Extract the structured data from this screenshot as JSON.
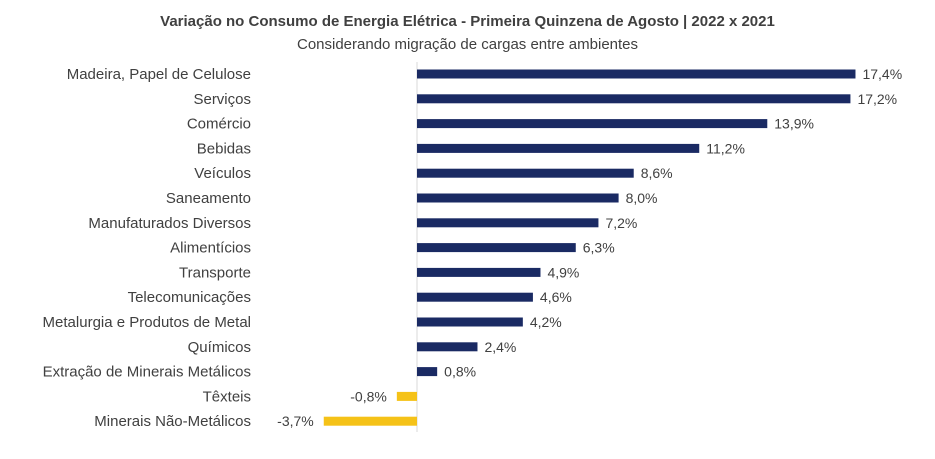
{
  "chart_data": {
    "type": "bar",
    "orientation": "horizontal",
    "title": "Variação no Consumo de Energia Elétrica - Primeira Quinzena de Agosto | 2022 x 2021",
    "subtitle": "Considerando migração de cargas entre ambientes",
    "categories": [
      "Madeira, Papel de Celulose",
      "Serviços",
      "Comércio",
      "Bebidas",
      "Veículos",
      "Saneamento",
      "Manufaturados Diversos",
      "Alimentícios",
      "Transporte",
      "Telecomunicações",
      "Metalurgia e Produtos de Metal",
      "Químicos",
      "Extração de Minerais Metálicos",
      "Têxteis",
      "Minerais Não-Metálicos"
    ],
    "values": [
      17.4,
      17.2,
      13.9,
      11.2,
      8.6,
      8.0,
      7.2,
      6.3,
      4.9,
      4.6,
      4.2,
      2.4,
      0.8,
      -0.8,
      -3.7
    ],
    "value_labels": [
      "17,4%",
      "17,2%",
      "13,9%",
      "11,2%",
      "8,6%",
      "8,0%",
      "7,2%",
      "6,3%",
      "4,9%",
      "4,6%",
      "4,2%",
      "2,4%",
      "0,8%",
      "-0,8%",
      "-3,7%"
    ],
    "colors": {
      "positive": "#1a2a63",
      "negative": "#f5c218",
      "axis": "#d9d9d9"
    },
    "grid": false,
    "legend": "none"
  }
}
